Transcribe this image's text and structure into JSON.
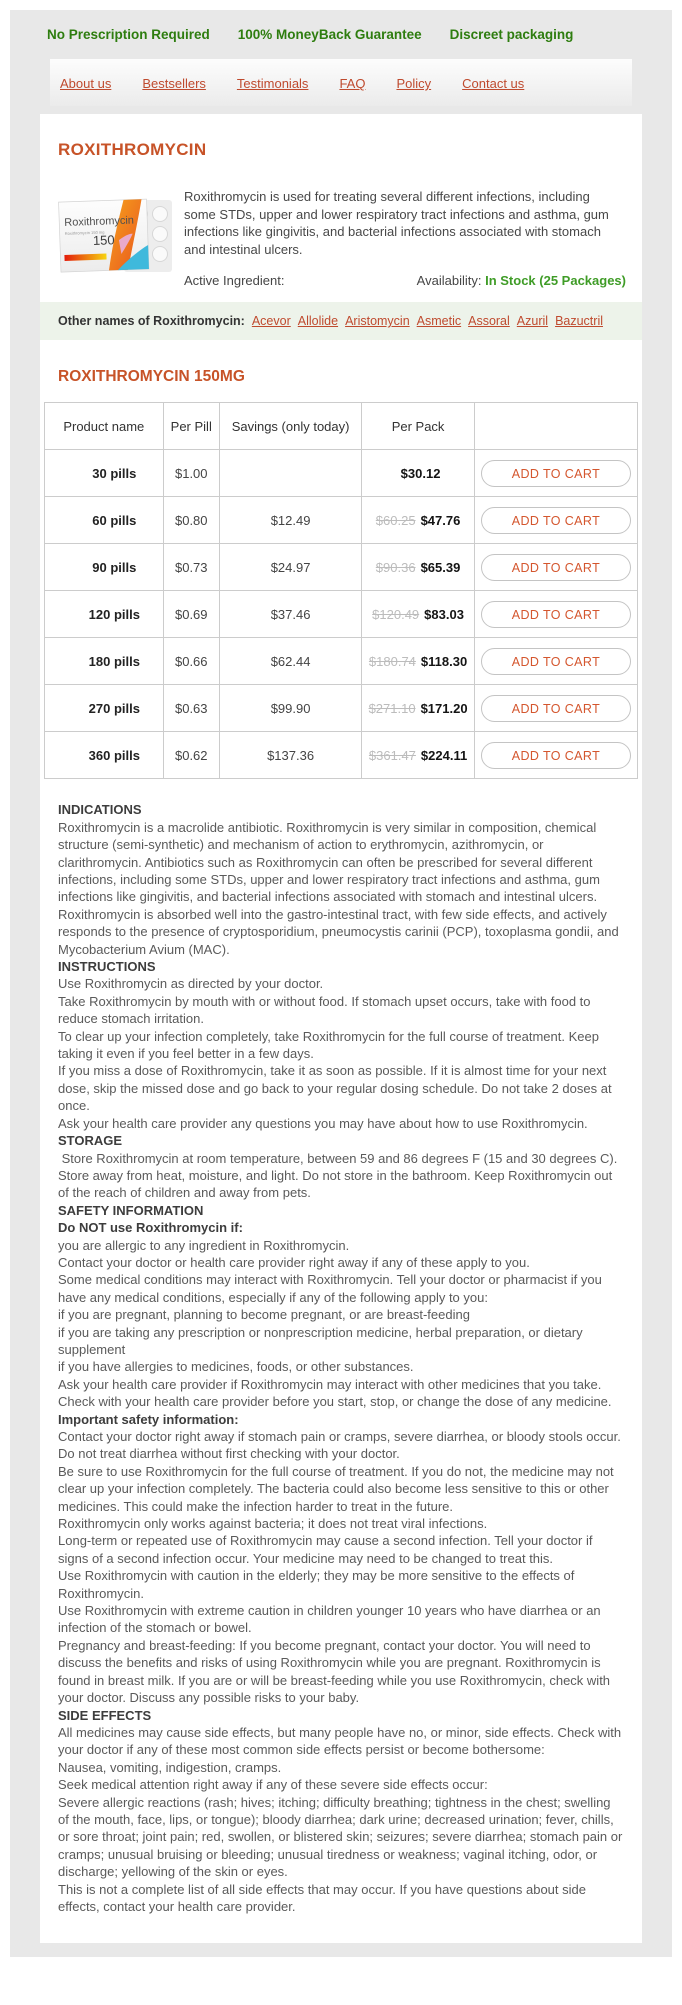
{
  "colors": {
    "benefit_green": "#2e7d0f",
    "stock_green": "#3f9c27",
    "link_red": "#bf4a2e",
    "heading_orange": "#c75328",
    "button_orange": "#d4562e",
    "band_gray": "#e8e8e8",
    "other_names_bg": "#edf3ea"
  },
  "benefits": [
    "No Prescription Required",
    "100% MoneyBack Guarantee",
    "Discreet packaging"
  ],
  "nav": {
    "items": [
      "About us",
      "Bestsellers",
      "Testimonials",
      "FAQ",
      "Policy",
      "Contact us"
    ]
  },
  "product": {
    "title": "ROXITHROMYCIN",
    "description": "Roxithromycin is used for treating several different infections, including some STDs, upper and lower respiratory tract infections and asthma, gum infections like gingivitis, and bacterial infections associated with stomach and intestinal ulcers.",
    "active_ingredient_label": "Active Ingredient:",
    "availability_label": "Availability:",
    "availability_value": "In Stock (25 Packages)",
    "other_names_label": "Other names of Roxithromycin:",
    "other_names": [
      "Acevor",
      "Allolide",
      "Aristomycin",
      "Asmetic",
      "Assoral",
      "Azuril",
      "Bazuctril"
    ],
    "image_brand": "Roxithromycin",
    "image_sub": "Roxithromycin 150 mg",
    "image_strength": "150"
  },
  "pricing": {
    "title": "ROXITHROMYCIN 150MG",
    "columns": [
      "Product name",
      "Per Pill",
      "Savings (only today)",
      "Per Pack"
    ],
    "add_to_cart_label": "ADD TO CART",
    "rows": [
      {
        "name": "30 pills",
        "per_pill": "$1.00",
        "savings": "",
        "old_price": "",
        "price": "$30.12"
      },
      {
        "name": "60 pills",
        "per_pill": "$0.80",
        "savings": "$12.49",
        "old_price": "$60.25",
        "price": "$47.76"
      },
      {
        "name": "90 pills",
        "per_pill": "$0.73",
        "savings": "$24.97",
        "old_price": "$90.36",
        "price": "$65.39"
      },
      {
        "name": "120 pills",
        "per_pill": "$0.69",
        "savings": "$37.46",
        "old_price": "$120.49",
        "price": "$83.03"
      },
      {
        "name": "180 pills",
        "per_pill": "$0.66",
        "savings": "$62.44",
        "old_price": "$180.74",
        "price": "$118.30"
      },
      {
        "name": "270 pills",
        "per_pill": "$0.63",
        "savings": "$99.90",
        "old_price": "$271.10",
        "price": "$171.20"
      },
      {
        "name": "360 pills",
        "per_pill": "$0.62",
        "savings": "$137.36",
        "old_price": "$361.47",
        "price": "$224.11"
      }
    ]
  },
  "info_blocks": [
    {
      "style": "h",
      "text": "INDICATIONS"
    },
    {
      "style": "p",
      "text": "Roxithromycin is a macrolide antibiotic. Roxithromycin is very similar in composition, chemical structure (semi-synthetic) and mechanism of action to erythromycin, azithromycin, or clarithromycin. Antibiotics such as Roxithromycin can often be prescribed for several different infections, including some STDs, upper and lower respiratory tract infections and asthma, gum infections like gingivitis, and bacterial infections associated with stomach and intestinal ulcers. Roxithromycin is absorbed well into the gastro-intestinal tract, with few side effects, and actively responds to the presence of cryptosporidium, pneumocystis carinii (PCP), toxoplasma gondii, and Mycobacterium Avium (MAC)."
    },
    {
      "style": "h",
      "text": "INSTRUCTIONS"
    },
    {
      "style": "p",
      "text": "Use Roxithromycin as directed by your doctor."
    },
    {
      "style": "p",
      "text": "Take Roxithromycin by mouth with or without food. If stomach upset occurs, take with food to reduce stomach irritation."
    },
    {
      "style": "p",
      "text": "To clear up your infection completely, take Roxithromycin for the full course of treatment. Keep taking it even if you feel better in a few days."
    },
    {
      "style": "p",
      "text": "If you miss a dose of Roxithromycin, take it as soon as possible. If it is almost time for your next dose, skip the missed dose and go back to your regular dosing schedule. Do not take 2 doses at once."
    },
    {
      "style": "p",
      "text": "Ask your health care provider any questions you may have about how to use Roxithromycin."
    },
    {
      "style": "h",
      "text": "STORAGE"
    },
    {
      "style": "p",
      "text": " Store Roxithromycin at room temperature, between 59 and 86 degrees F (15 and 30 degrees C). Store away from heat, moisture, and light. Do not store in the bathroom. Keep Roxithromycin out of the reach of children and away from pets."
    },
    {
      "style": "h",
      "text": "SAFETY INFORMATION"
    },
    {
      "style": "h",
      "text": "Do NOT use Roxithromycin if:"
    },
    {
      "style": "p",
      "text": "you are allergic to any ingredient in Roxithromycin."
    },
    {
      "style": "p",
      "text": "Contact your doctor or health care provider right away if any of these apply to you."
    },
    {
      "style": "p",
      "text": "Some medical conditions may interact with Roxithromycin. Tell your doctor or pharmacist if you have any medical conditions, especially if any of the following apply to you:"
    },
    {
      "style": "p",
      "text": "if you are pregnant, planning to become pregnant, or are breast-feeding"
    },
    {
      "style": "p",
      "text": "if you are taking any prescription or nonprescription medicine, herbal preparation, or dietary supplement"
    },
    {
      "style": "p",
      "text": "if you have allergies to medicines, foods, or other substances."
    },
    {
      "style": "p",
      "text": "Ask your health care provider if Roxithromycin may interact with other medicines that you take. Check with your health care provider before you start, stop, or change the dose of any medicine."
    },
    {
      "style": "h",
      "text": "Important safety information:"
    },
    {
      "style": "p",
      "text": "Contact your doctor right away if stomach pain or cramps, severe diarrhea, or bloody stools occur. Do not treat diarrhea without first checking with your doctor."
    },
    {
      "style": "p",
      "text": "Be sure to use Roxithromycin for the full course of treatment. If you do not, the medicine may not clear up your infection completely. The bacteria could also become less sensitive to this or other medicines. This could make the infection harder to treat in the future."
    },
    {
      "style": "p",
      "text": "Roxithromycin only works against bacteria; it does not treat viral infections."
    },
    {
      "style": "p",
      "text": "Long-term or repeated use of Roxithromycin may cause a second infection. Tell your doctor if signs of a second infection occur. Your medicine may need to be changed to treat this."
    },
    {
      "style": "p",
      "text": "Use Roxithromycin with caution in the elderly; they may be more sensitive to the effects of Roxithromycin."
    },
    {
      "style": "p",
      "text": "Use Roxithromycin with extreme caution in children younger 10 years who have diarrhea or an infection of the stomach or bowel."
    },
    {
      "style": "p",
      "text": "Pregnancy and breast-feeding: If you become pregnant, contact your doctor. You will need to discuss the benefits and risks of using Roxithromycin while you are pregnant. Roxithromycin is found in breast milk. If you are or will be breast-feeding while you use Roxithromycin, check with your doctor. Discuss any possible risks to your baby."
    },
    {
      "style": "h",
      "text": "SIDE EFFECTS"
    },
    {
      "style": "p",
      "text": "All medicines may cause side effects, but many people have no, or minor, side effects. Check with your doctor if any of these most common side effects persist or become bothersome:"
    },
    {
      "style": "p",
      "text": "Nausea, vomiting, indigestion, cramps."
    },
    {
      "style": "p",
      "text": "Seek medical attention right away if any of these severe side effects occur:"
    },
    {
      "style": "p",
      "text": "Severe allergic reactions (rash; hives; itching; difficulty breathing; tightness in the chest; swelling of the mouth, face, lips, or tongue); bloody diarrhea; dark urine; decreased urination; fever, chills, or sore throat; joint pain; red, swollen, or blistered skin; seizures; severe diarrhea; stomach pain or cramps; unusual bruising or bleeding; unusual tiredness or weakness; vaginal itching, odor, or discharge; yellowing of the skin or eyes."
    },
    {
      "style": "p",
      "text": "This is not a complete list of all side effects that may occur. If you have questions about side effects, contact your health care provider."
    }
  ]
}
